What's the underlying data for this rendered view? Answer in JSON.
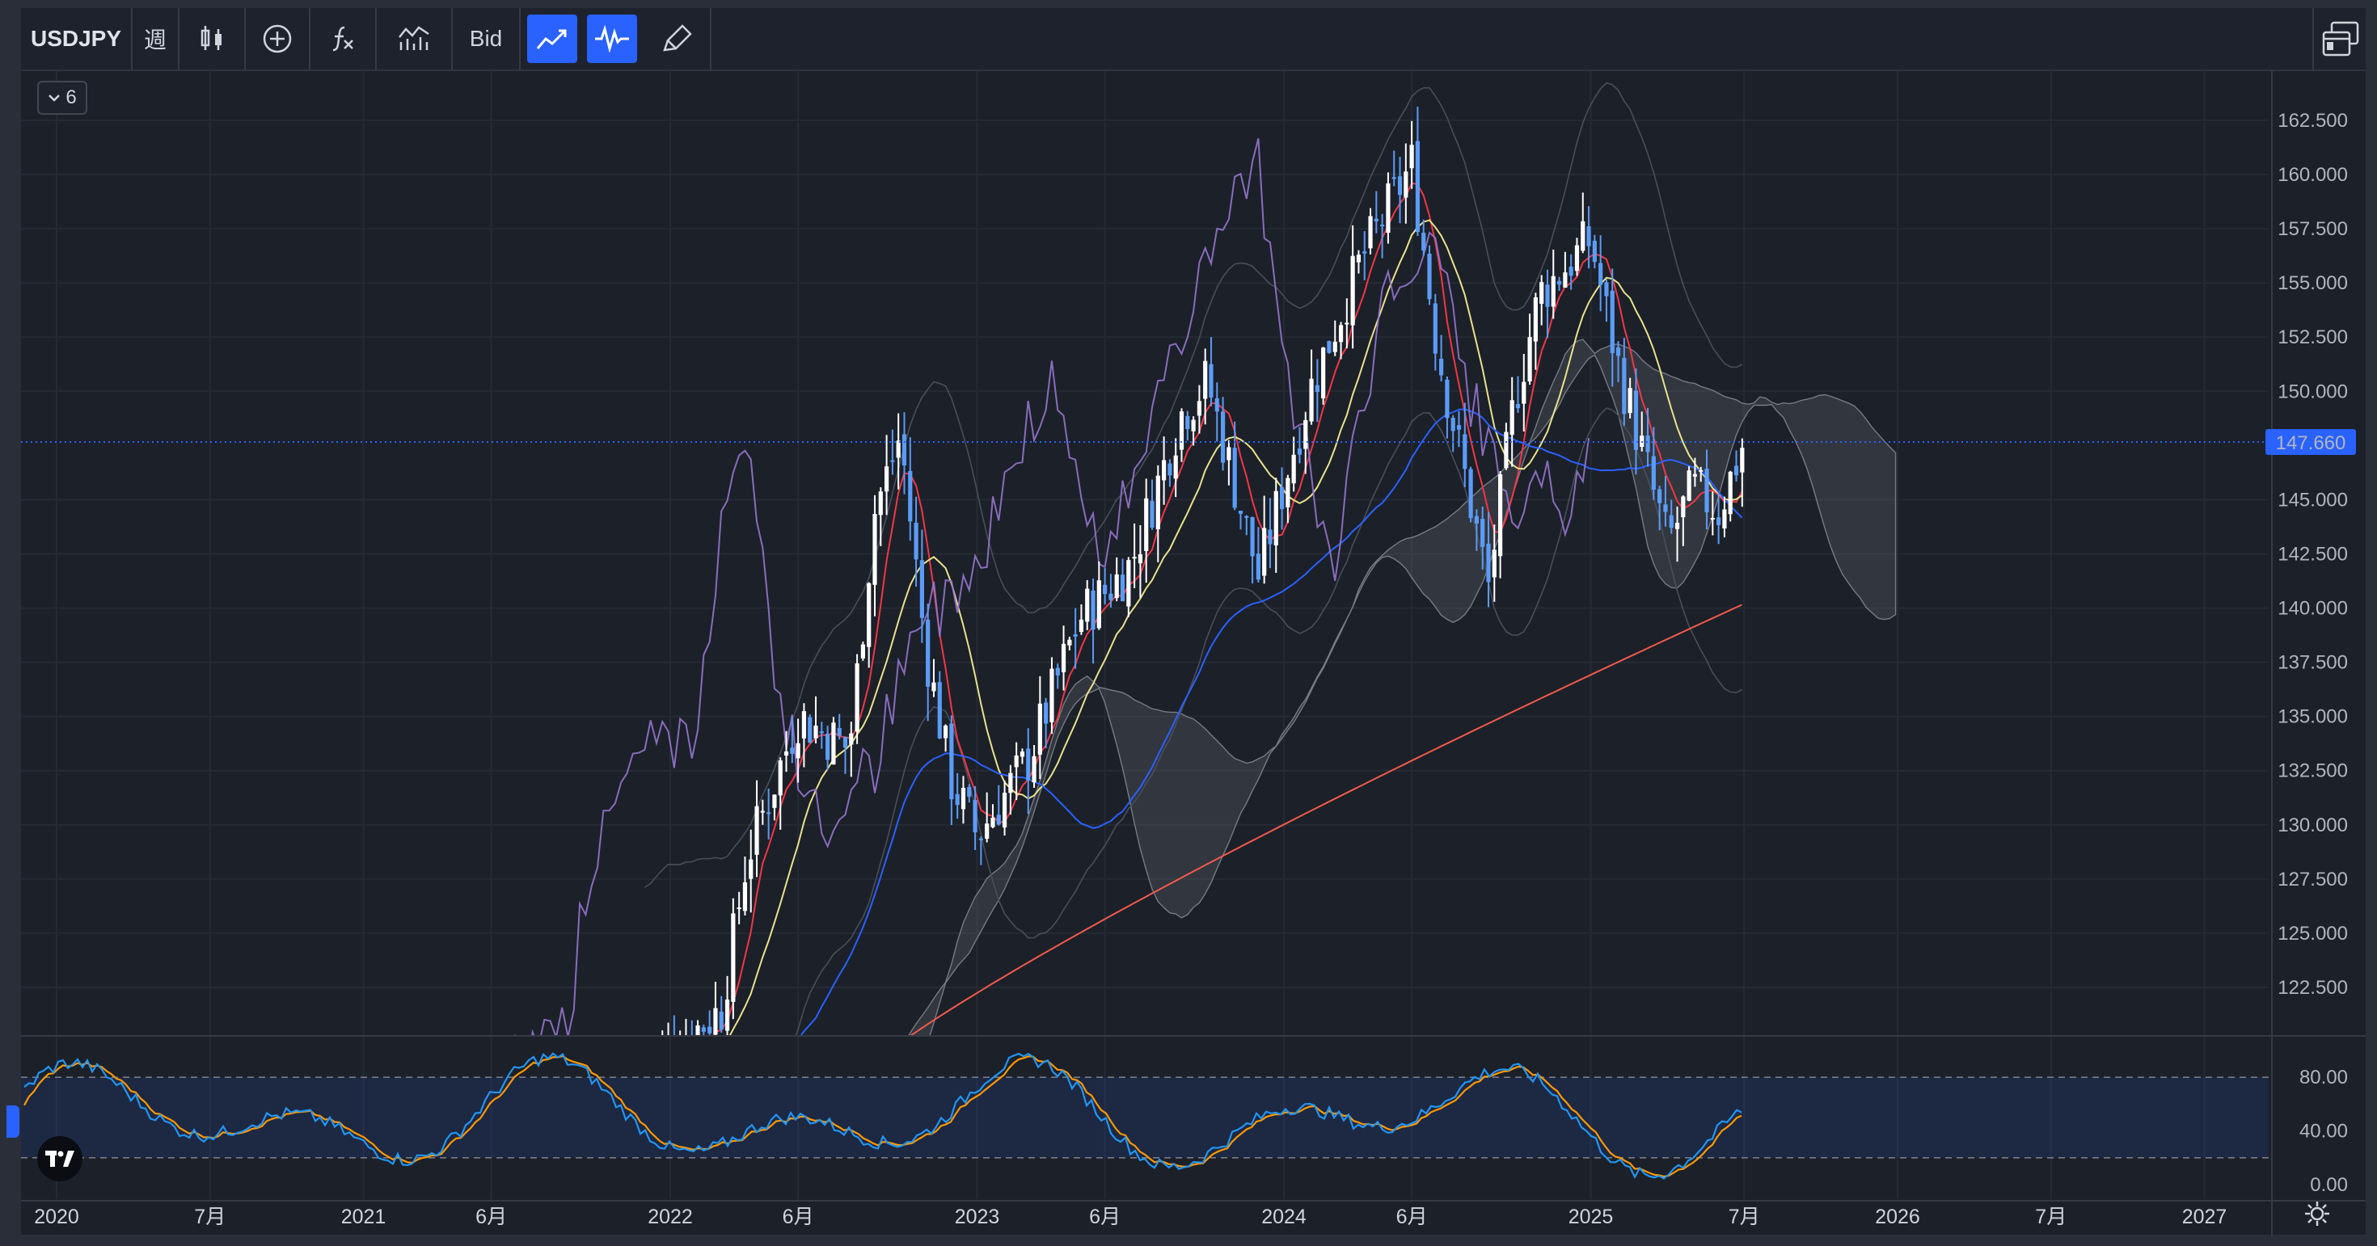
{
  "toolbar": {
    "symbol": "USDJPY",
    "interval": "週",
    "price_type": "Bid",
    "icons": [
      "candles-icon",
      "add-compare-icon",
      "indicators-icon",
      "chart-type-icon",
      "trend-icon",
      "wave-icon",
      "brush-icon",
      "layout-icon"
    ]
  },
  "legend": {
    "count": "6"
  },
  "price_axis": {
    "ticks": [
      "162.500",
      "160.000",
      "157.500",
      "155.000",
      "152.500",
      "150.000",
      "145.000",
      "142.500",
      "140.000",
      "137.500",
      "135.000",
      "132.500",
      "130.000",
      "127.500",
      "125.000",
      "122.500"
    ],
    "current_price": "147.660"
  },
  "oscillator_axis": {
    "ticks": [
      "80.00",
      "40.00",
      "0.00"
    ]
  },
  "time_axis": {
    "labels": [
      "2020",
      "7月",
      "2021",
      "6月",
      "2022",
      "6月",
      "2023",
      "6月",
      "2024",
      "6月",
      "2025",
      "7月",
      "2026",
      "7月",
      "2027"
    ]
  },
  "colors": {
    "up_candle": "#ffffff",
    "down_candle": "#5b9cf6",
    "current_price_tag": "#2962ff",
    "ma_short": "#f23645",
    "ma_mid": "#e8e38a",
    "ma_long": "#2962ff",
    "ma_200": "#f25b4b",
    "stoch_k": "#2196f3",
    "stoch_d": "#ff9800",
    "lagging_span": "#9575cd"
  },
  "chart_data": {
    "type": "candlestick",
    "interval": "週",
    "symbol": "USDJPY",
    "y_range": [
      120.5,
      164.0
    ],
    "x_range": [
      "2020",
      "2027"
    ],
    "current_price": 147.66,
    "approx_close_path": [
      {
        "t": "2022-03",
        "close": 121.5
      },
      {
        "t": "2022-04",
        "close": 128.5
      },
      {
        "t": "2022-06",
        "close": 135.0
      },
      {
        "t": "2022-08",
        "close": 133.5
      },
      {
        "t": "2022-09",
        "close": 144.5
      },
      {
        "t": "2022-10",
        "close": 148.0
      },
      {
        "t": "2022-11",
        "close": 138.0
      },
      {
        "t": "2022-12",
        "close": 132.0
      },
      {
        "t": "2023-01",
        "close": 129.5
      },
      {
        "t": "2023-03",
        "close": 133.0
      },
      {
        "t": "2023-05",
        "close": 139.5
      },
      {
        "t": "2023-07",
        "close": 142.0
      },
      {
        "t": "2023-09",
        "close": 149.0
      },
      {
        "t": "2023-10",
        "close": 150.5
      },
      {
        "t": "2023-12",
        "close": 141.5
      },
      {
        "t": "2024-02",
        "close": 150.0
      },
      {
        "t": "2024-04",
        "close": 156.0
      },
      {
        "t": "2024-06",
        "close": 160.5
      },
      {
        "t": "2024-07",
        "close": 152.0
      },
      {
        "t": "2024-09",
        "close": 141.0
      },
      {
        "t": "2024-10",
        "close": 149.5
      },
      {
        "t": "2024-11",
        "close": 154.5
      },
      {
        "t": "2025-01",
        "close": 157.0
      },
      {
        "t": "2025-02",
        "close": 151.5
      },
      {
        "t": "2025-04",
        "close": 143.0
      },
      {
        "t": "2025-05",
        "close": 145.5
      },
      {
        "t": "2025-06",
        "close": 144.5
      },
      {
        "t": "2025-07",
        "close": 147.7
      }
    ],
    "oscillator": {
      "name": "stochastic",
      "range": [
        0,
        100
      ],
      "bands": [
        20,
        80
      ]
    }
  }
}
